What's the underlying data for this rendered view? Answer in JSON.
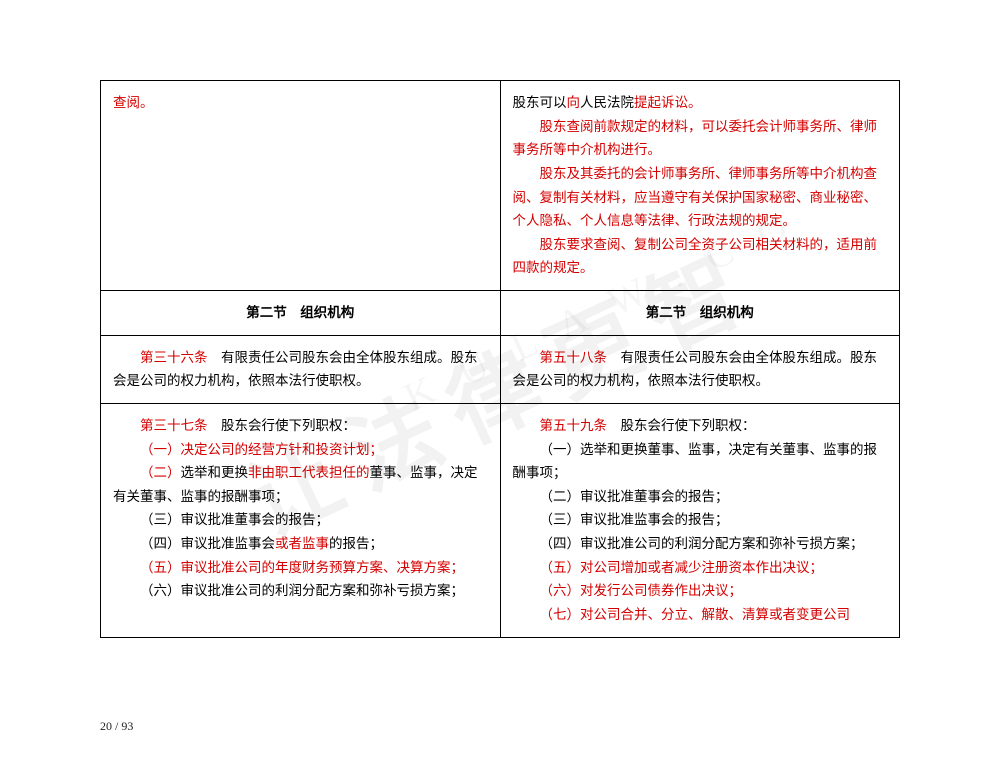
{
  "colors": {
    "red": "#d40000",
    "text": "#000000",
    "border": "#000000",
    "bg": "#ffffff"
  },
  "watermark_main": "让法律更智",
  "watermark_sub": "K U L A W . C O",
  "page_number": "20 / 93",
  "section_title": "第二节　组织机构",
  "row1": {
    "left": {
      "chayue": "查阅。"
    },
    "right": {
      "l1a": "股东可以",
      "l1b": "向",
      "l1c": "人民法院",
      "l1d": "提起诉讼。",
      "p2": "股东查阅前款规定的材料，可以委托会计师事务所、律师事务所等中介机构进行。",
      "p3": "股东及其委托的会计师事务所、律师事务所等中介机构查阅、复制有关材料，应当遵守有关保护国家秘密、商业秘密、个人隐私、个人信息等法律、行政法规的规定。",
      "p4": "股东要求查阅、复制公司全资子公司相关材料的，适用前四款的规定。"
    }
  },
  "row3": {
    "left": {
      "art": "第三十六条",
      "body": "有限责任公司股东会由全体股东组成。股东会是公司的权力机构，依照本法行使职权。"
    },
    "right": {
      "art": "第五十八条",
      "body": "有限责任公司股东会由全体股东组成。股东会是公司的权力机构，依照本法行使职权。"
    }
  },
  "row4": {
    "left": {
      "art": "第三十七条",
      "head": "股东会行使下列职权：",
      "i1": "（一）决定公司的经营方针和投资计划；",
      "i2a": "（二）",
      "i2b": "选举和更换",
      "i2c": "非由职工代表担任的",
      "i2d": "董事、监事，决定有关董事、监事的报酬事项；",
      "i3": "（三）审议批准董事会的报告；",
      "i4a": "（四）审议批准监事会",
      "i4b": "或者监事",
      "i4c": "的报告；",
      "i5": "（五）审议批准公司的年度财务预算方案、决算方案；",
      "i6": "（六）审议批准公司的利润分配方案和弥补亏损方案；"
    },
    "right": {
      "art": "第五十九条",
      "head": "股东会行使下列职权：",
      "i1": "（一）选举和更换董事、监事，决定有关董事、监事的报酬事项；",
      "i2": "（二）审议批准董事会的报告；",
      "i3": "（三）审议批准监事会的报告；",
      "i4": "（四）审议批准公司的利润分配方案和弥补亏损方案；",
      "i5": "（五）对公司增加或者减少注册资本作出决议；",
      "i6": "（六）对发行公司债券作出决议；",
      "i7": "（七）对公司合并、分立、解散、清算或者变更公司"
    }
  }
}
